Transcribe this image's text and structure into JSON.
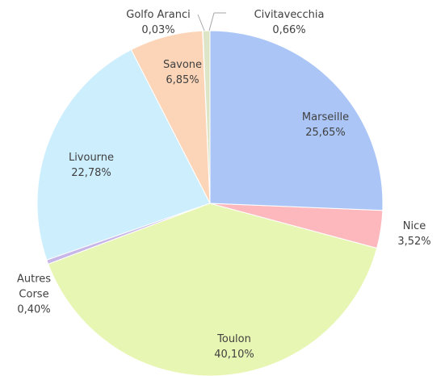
{
  "chart_data": {
    "type": "pie",
    "categories": [
      "Marseille",
      "Nice",
      "Toulon",
      "Autres Corse",
      "Livourne",
      "Savone",
      "Golfo Aranci",
      "Civitavecchia"
    ],
    "values": [
      25.65,
      3.52,
      40.1,
      0.4,
      22.78,
      6.85,
      0.03,
      0.66
    ],
    "value_labels": [
      "25,65%",
      "3,52%",
      "40,10%",
      "0,40%",
      "22,78%",
      "6,85%",
      "0,03%",
      "0,66%"
    ],
    "colors": [
      "#abc6f6",
      "#fdb8bd",
      "#e8f6b4",
      "#c7b6e8",
      "#cdeefd",
      "#fcd5b8",
      "#e6e6e6",
      "#dde5c6"
    ]
  }
}
